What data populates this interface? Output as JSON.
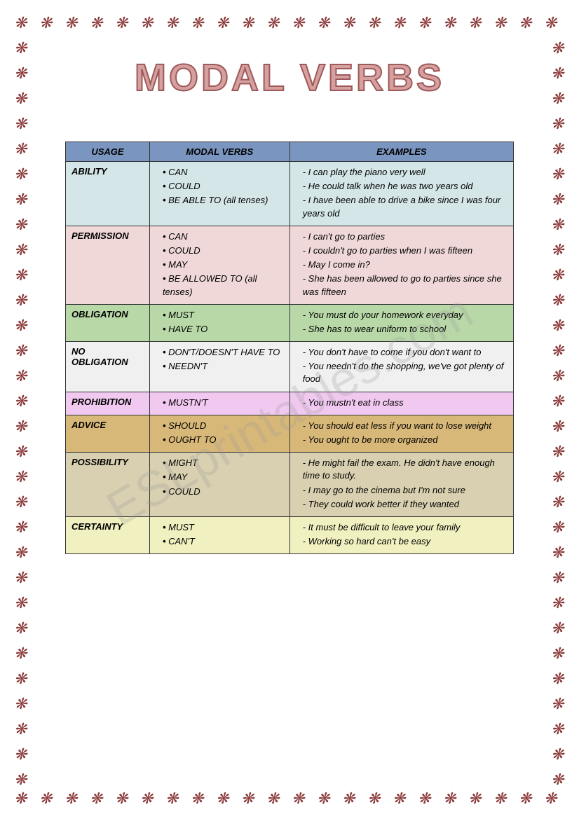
{
  "title": "MODAL VERBS",
  "watermark": "ESLprintables.com",
  "flower_glyph": "❋",
  "flower_color": "#8b3a3a",
  "headers": {
    "usage": "USAGE",
    "modals": "MODAL VERBS",
    "examples": "EXAMPLES",
    "bg": "#7a95c0"
  },
  "rows": [
    {
      "usage": "ABILITY",
      "bg": "#d4e6e8",
      "modals": [
        "CAN",
        "COULD",
        "BE ABLE TO (all tenses)"
      ],
      "examples": [
        "I can play the piano very well",
        "He could talk when he was two years old",
        "I have been able to drive a bike since I was four years old"
      ]
    },
    {
      "usage": "PERMISSION",
      "bg": "#f0d8d8",
      "modals": [
        "CAN",
        "COULD",
        "MAY",
        "BE ALLOWED TO (all tenses)"
      ],
      "examples": [
        "I can't go to parties",
        "I couldn't go to parties when I was fifteen",
        "May I come in?",
        "She has been allowed to go to parties since she was fifteen"
      ]
    },
    {
      "usage": "OBLIGATION",
      "bg": "#b8d8a8",
      "modals": [
        "MUST",
        "HAVE TO"
      ],
      "examples": [
        "You must do your homework everyday",
        "She has to wear uniform to school"
      ]
    },
    {
      "usage": "NO OBLIGATION",
      "bg": "#f0f0f0",
      "modals": [
        "DON'T/DOESN'T HAVE TO",
        "NEEDN'T"
      ],
      "examples": [
        "You don't have to come if you don't want to",
        "You needn't do the shopping, we've got plenty of food"
      ]
    },
    {
      "usage": "PROHIBITION",
      "bg": "#f0c8f0",
      "modals": [
        "MUSTN'T"
      ],
      "examples": [
        "You mustn't eat in class"
      ]
    },
    {
      "usage": "ADVICE",
      "bg": "#d8b878",
      "modals": [
        "SHOULD",
        "OUGHT TO"
      ],
      "examples": [
        "You should eat less if you want to lose weight",
        "You ought to be more organized"
      ]
    },
    {
      "usage": "POSSIBILITY",
      "bg": "#d8d0b0",
      "modals": [
        "MIGHT",
        "MAY",
        "COULD"
      ],
      "examples": [
        "He might fail the exam. He didn't have enough time to study.",
        "I may go to the cinema but I'm not sure",
        "They could work better if they wanted"
      ]
    },
    {
      "usage": "CERTAINTY",
      "bg": "#f0f0c0",
      "modals": [
        "MUST",
        "CAN'T"
      ],
      "examples": [
        "It must be difficult to leave your family",
        "Working so hard can't be easy"
      ]
    }
  ]
}
